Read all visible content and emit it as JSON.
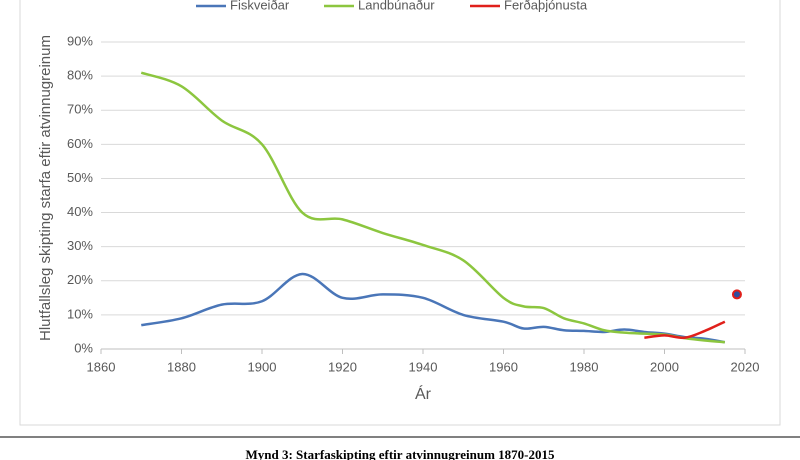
{
  "chart_data": {
    "type": "line",
    "caption": "Mynd 3: Starfaskipting eftir atvinnugreinum 1870-2015",
    "x_label": "Ár",
    "y_label": "Hlutfallsleg skipting starfa eftir  atvinnugreinum",
    "x": [
      1870,
      1880,
      1890,
      1900,
      1910,
      1920,
      1930,
      1940,
      1950,
      1960,
      1965,
      1970,
      1975,
      1980,
      1985,
      1990,
      1995,
      2000,
      2005,
      2010,
      2015
    ],
    "series": [
      {
        "name": "Fiskveiðar",
        "color": "#4a76b8",
        "values": [
          7,
          9,
          13,
          14,
          22,
          15,
          16,
          15,
          10,
          8,
          6,
          6.5,
          5.5,
          5.3,
          5,
          5.7,
          5,
          4.5,
          3.5,
          3,
          2
        ]
      },
      {
        "name": "Landbúnaður",
        "color": "#8cc63f",
        "values": [
          81,
          77,
          67,
          60,
          40,
          38,
          34,
          30.5,
          26,
          15,
          12.5,
          12,
          9,
          7.5,
          5.5,
          4.8,
          4.5,
          4.2,
          3.2,
          2.5,
          2
        ]
      },
      {
        "name": "Ferðaþjónusta",
        "color": "#e0201b",
        "values": [
          null,
          null,
          null,
          null,
          null,
          null,
          null,
          null,
          null,
          null,
          null,
          null,
          null,
          null,
          null,
          null,
          3.3,
          4,
          3.3,
          5.3,
          8
        ]
      }
    ],
    "points": [
      {
        "x": 2018,
        "y": 16,
        "color": "#2e4fa0",
        "edge": "#e0201b"
      }
    ],
    "xlim": [
      1860,
      2020
    ],
    "xticks": [
      1860,
      1880,
      1900,
      1920,
      1940,
      1960,
      1980,
      2000,
      2020
    ],
    "ylim": [
      0,
      90
    ],
    "yticks": [
      {
        "value": 0,
        "label": "0%"
      },
      {
        "value": 10,
        "label": "10%"
      },
      {
        "value": 20,
        "label": "20%"
      },
      {
        "value": 30,
        "label": "30%"
      },
      {
        "value": 40,
        "label": "40%"
      },
      {
        "value": 50,
        "label": "50%"
      },
      {
        "value": 60,
        "label": "60%"
      },
      {
        "value": 70,
        "label": "70%"
      },
      {
        "value": 80,
        "label": "80%"
      },
      {
        "value": 90,
        "label": "90%"
      }
    ],
    "grid": true
  }
}
